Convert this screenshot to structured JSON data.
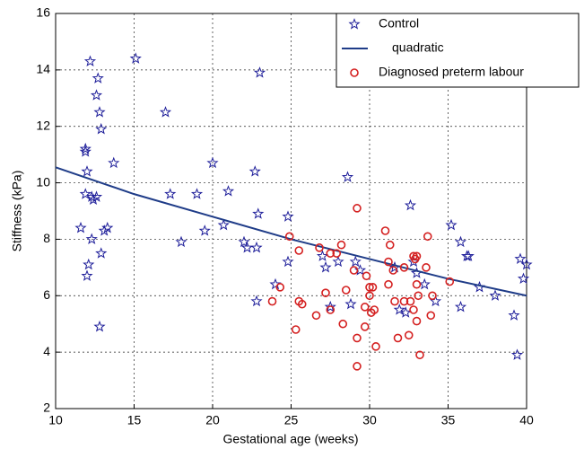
{
  "chart_data": {
    "type": "scatter",
    "xlabel": "Gestational age (weeks)",
    "ylabel": "Stiffness (kPa)",
    "xlim": [
      10,
      40
    ],
    "ylim": [
      2,
      16
    ],
    "xticks": [
      10,
      15,
      20,
      25,
      30,
      35,
      40
    ],
    "yticks": [
      2,
      4,
      6,
      8,
      10,
      12,
      14,
      16
    ],
    "grid": true,
    "legend": "upper right",
    "series": [
      {
        "name": "Control",
        "color": "#1f1f9a",
        "marker": "star",
        "x": [
          12.2,
          15.1,
          12.7,
          12.6,
          12.8,
          12.9,
          17.0,
          23.0,
          11.9,
          11.9,
          12.0,
          13.7,
          20.0,
          22.7,
          28.6,
          11.9,
          12.3,
          12.4,
          12.6,
          17.3,
          19.0,
          21.0,
          11.6,
          13.1,
          13.3,
          12.3,
          18.0,
          19.5,
          20.7,
          22.0,
          22.2,
          22.8,
          22.9,
          24.8,
          32.6,
          35.2,
          35.8,
          36.2,
          36.3,
          27.0,
          27.2,
          28.0,
          29.1,
          29.4,
          31.6,
          32.8,
          33.0,
          33.5,
          34.2,
          35.8,
          37.0,
          38.0,
          39.2,
          39.6,
          39.8,
          40.0,
          39.4,
          12.9,
          12.1,
          12.0,
          12.8,
          22.8,
          24.0,
          24.8,
          27.5,
          28.8,
          31.9,
          32.3
        ],
        "values": [
          14.3,
          14.4,
          13.7,
          13.1,
          12.5,
          11.9,
          12.5,
          13.9,
          11.2,
          11.1,
          10.4,
          10.7,
          10.7,
          10.4,
          10.2,
          9.6,
          9.5,
          9.4,
          9.5,
          9.6,
          9.6,
          9.7,
          8.4,
          8.3,
          8.4,
          8.0,
          7.9,
          8.3,
          8.5,
          7.9,
          7.7,
          7.7,
          8.9,
          8.8,
          9.2,
          8.5,
          7.9,
          7.4,
          7.4,
          7.4,
          7.0,
          7.2,
          7.2,
          6.9,
          7.0,
          7.2,
          6.8,
          6.4,
          5.8,
          5.6,
          6.3,
          6.0,
          5.3,
          7.3,
          6.6,
          7.1,
          3.9,
          7.5,
          7.1,
          6.7,
          4.9,
          5.8,
          6.4,
          7.2,
          5.6,
          5.7,
          5.5,
          5.4
        ]
      },
      {
        "name": "quadratic",
        "color": "#1f3c88",
        "marker": "line",
        "x": [
          10,
          15,
          20,
          25,
          30,
          35,
          40
        ],
        "values": [
          10.55,
          9.6,
          8.8,
          8.0,
          7.3,
          6.6,
          6.0
        ]
      },
      {
        "name": "Diagnosed preterm labour",
        "color": "#d42020",
        "marker": "circle",
        "x": [
          24.9,
          25.5,
          26.8,
          27.5,
          27.9,
          28.2,
          23.8,
          24.3,
          25.5,
          25.7,
          25.3,
          26.6,
          27.2,
          27.5,
          28.3,
          28.5,
          29.0,
          29.2,
          29.2,
          29.2,
          29.7,
          29.8,
          30.0,
          30.0,
          30.2,
          30.1,
          30.3,
          30.4,
          29.7,
          31.0,
          31.3,
          31.2,
          31.5,
          31.2,
          31.6,
          31.8,
          32.2,
          32.2,
          32.5,
          32.6,
          32.8,
          33.0,
          32.9,
          33.0,
          33.1,
          32.8,
          33.0,
          33.2,
          33.6,
          33.7,
          34.0,
          33.9,
          35.1
        ],
        "values": [
          8.1,
          7.6,
          7.7,
          7.5,
          7.5,
          7.8,
          5.8,
          6.3,
          5.8,
          5.7,
          4.8,
          5.3,
          6.1,
          5.5,
          5.0,
          6.2,
          6.9,
          9.1,
          4.5,
          3.5,
          5.6,
          6.7,
          6.3,
          6.0,
          6.3,
          5.4,
          5.5,
          4.2,
          4.9,
          8.3,
          7.8,
          7.2,
          6.9,
          6.4,
          5.8,
          4.5,
          5.8,
          7.0,
          4.6,
          5.8,
          7.4,
          7.4,
          7.3,
          6.4,
          6.0,
          5.5,
          5.1,
          3.9,
          7.0,
          8.1,
          6.0,
          5.3,
          6.5
        ]
      }
    ]
  }
}
